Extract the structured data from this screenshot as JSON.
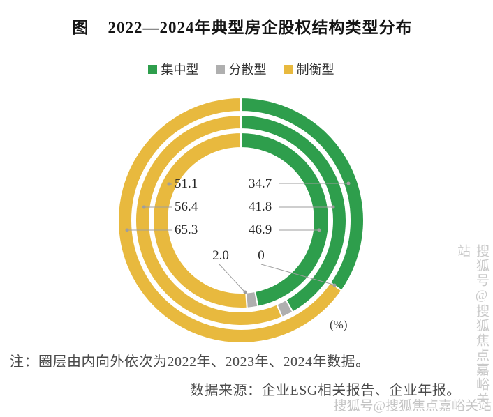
{
  "title": {
    "prefix": "图",
    "text": "2022—2024年典型房企股权结构类型分布"
  },
  "legend": [
    {
      "label": "集中型",
      "color": "#2E9E4C"
    },
    {
      "label": "分散型",
      "color": "#AFAFAF"
    },
    {
      "label": "制衡型",
      "color": "#E8B93E"
    }
  ],
  "chart_data": {
    "type": "pie",
    "subtype": "concentric-donut",
    "title": "2022—2024年典型房企股权结构类型分布",
    "unit": "%",
    "unit_label": "(%)",
    "legend_position": "top",
    "categories": [
      "集中型",
      "分散型",
      "制衡型"
    ],
    "colors": [
      "#2E9E4C",
      "#AFAFAF",
      "#E8B93E"
    ],
    "rings": [
      {
        "name": "2022年",
        "position": "inner",
        "values": [
          46.9,
          2.0,
          51.1
        ]
      },
      {
        "name": "2023年",
        "position": "middle",
        "values": [
          41.8,
          1.8,
          56.4
        ]
      },
      {
        "name": "2024年",
        "position": "outer",
        "values": [
          34.7,
          0.0,
          65.3
        ]
      }
    ],
    "center_labels": {
      "rows": [
        {
          "left": "51.1",
          "right": "34.7"
        },
        {
          "left": "56.4",
          "right": "41.8"
        },
        {
          "left": "65.3",
          "right": "46.9"
        },
        {
          "left": "2.0",
          "right": "0"
        }
      ]
    }
  },
  "note": "注：圈层由内向外依次为2022年、2023年、2024年数据。",
  "source": "数据来源：企业ESG相关报告、企业年报。",
  "watermark": "搜狐号@搜狐焦点嘉峪关站"
}
